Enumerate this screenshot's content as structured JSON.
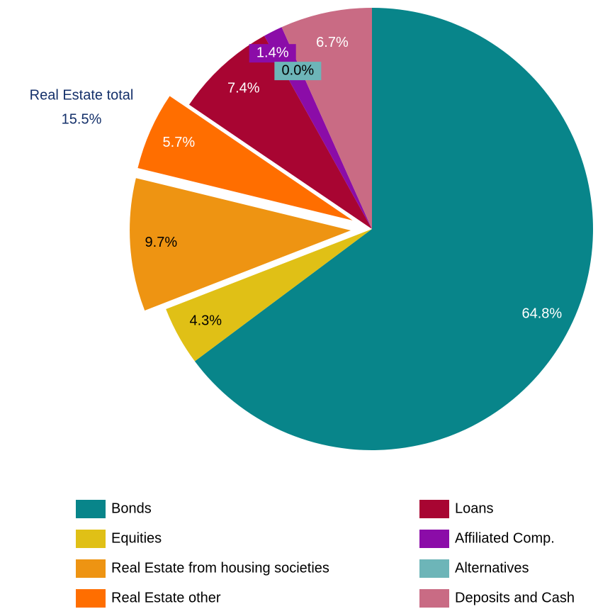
{
  "chart_data": {
    "type": "pie",
    "categories": [
      "Bonds",
      "Equities",
      "Real Estate from housing societies",
      "Real Estate other",
      "Loans",
      "Affiliated Comp.",
      "Alternatives",
      "Deposits and Cash"
    ],
    "values": [
      64.8,
      4.3,
      9.7,
      5.7,
      7.4,
      1.4,
      0.0,
      6.7
    ],
    "value_labels": [
      "64.8%",
      "4.3%",
      "9.7%",
      "5.7%",
      "7.4%",
      "1.4%",
      "0.0%",
      "6.7%"
    ],
    "colors": [
      "#08858a",
      "#e0c016",
      "#ee9412",
      "#ff6e00",
      "#a80532",
      "#8b0ca8",
      "#6db5b8",
      "#c96b84"
    ],
    "label_colors": [
      "#ffffff",
      "#000000",
      "#000000",
      "#ffffff",
      "#ffffff",
      "#ffffff",
      "#000000",
      "#ffffff"
    ],
    "explode": [
      false,
      false,
      true,
      true,
      false,
      false,
      false,
      false
    ],
    "annotation": [
      "Real Estate total",
      "15.5%"
    ],
    "legend": "bottom"
  }
}
